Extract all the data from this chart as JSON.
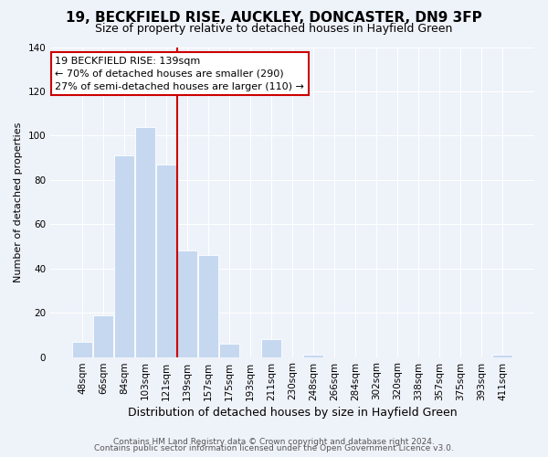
{
  "title": "19, BECKFIELD RISE, AUCKLEY, DONCASTER, DN9 3FP",
  "subtitle": "Size of property relative to detached houses in Hayfield Green",
  "xlabel": "Distribution of detached houses by size in Hayfield Green",
  "ylabel": "Number of detached properties",
  "bar_labels": [
    "48sqm",
    "66sqm",
    "84sqm",
    "103sqm",
    "121sqm",
    "139sqm",
    "157sqm",
    "175sqm",
    "193sqm",
    "211sqm",
    "230sqm",
    "248sqm",
    "266sqm",
    "284sqm",
    "302sqm",
    "320sqm",
    "338sqm",
    "357sqm",
    "375sqm",
    "393sqm",
    "411sqm"
  ],
  "bar_values": [
    7,
    19,
    91,
    104,
    87,
    48,
    46,
    6,
    0,
    8,
    0,
    1,
    0,
    0,
    0,
    0,
    0,
    0,
    0,
    0,
    1
  ],
  "bar_color": "#c5d8f0",
  "bar_edgecolor": "#ffffff",
  "vline_color": "#cc0000",
  "vline_x_index": 5,
  "annotation_line1": "19 BECKFIELD RISE: 139sqm",
  "annotation_line2": "← 70% of detached houses are smaller (290)",
  "annotation_line3": "27% of semi-detached houses are larger (110) →",
  "annotation_box_facecolor": "#ffffff",
  "annotation_box_edgecolor": "#cc0000",
  "ylim": [
    0,
    140
  ],
  "yticks": [
    0,
    20,
    40,
    60,
    80,
    100,
    120,
    140
  ],
  "footer1": "Contains HM Land Registry data © Crown copyright and database right 2024.",
  "footer2": "Contains public sector information licensed under the Open Government Licence v3.0.",
  "fig_facecolor": "#eef2f9",
  "ax_facecolor": "#eef2f9",
  "grid_color": "#ffffff",
  "title_fontsize": 11,
  "subtitle_fontsize": 9,
  "xlabel_fontsize": 9,
  "ylabel_fontsize": 8,
  "tick_fontsize": 7.5,
  "annotation_fontsize": 8,
  "footer_fontsize": 6.5
}
